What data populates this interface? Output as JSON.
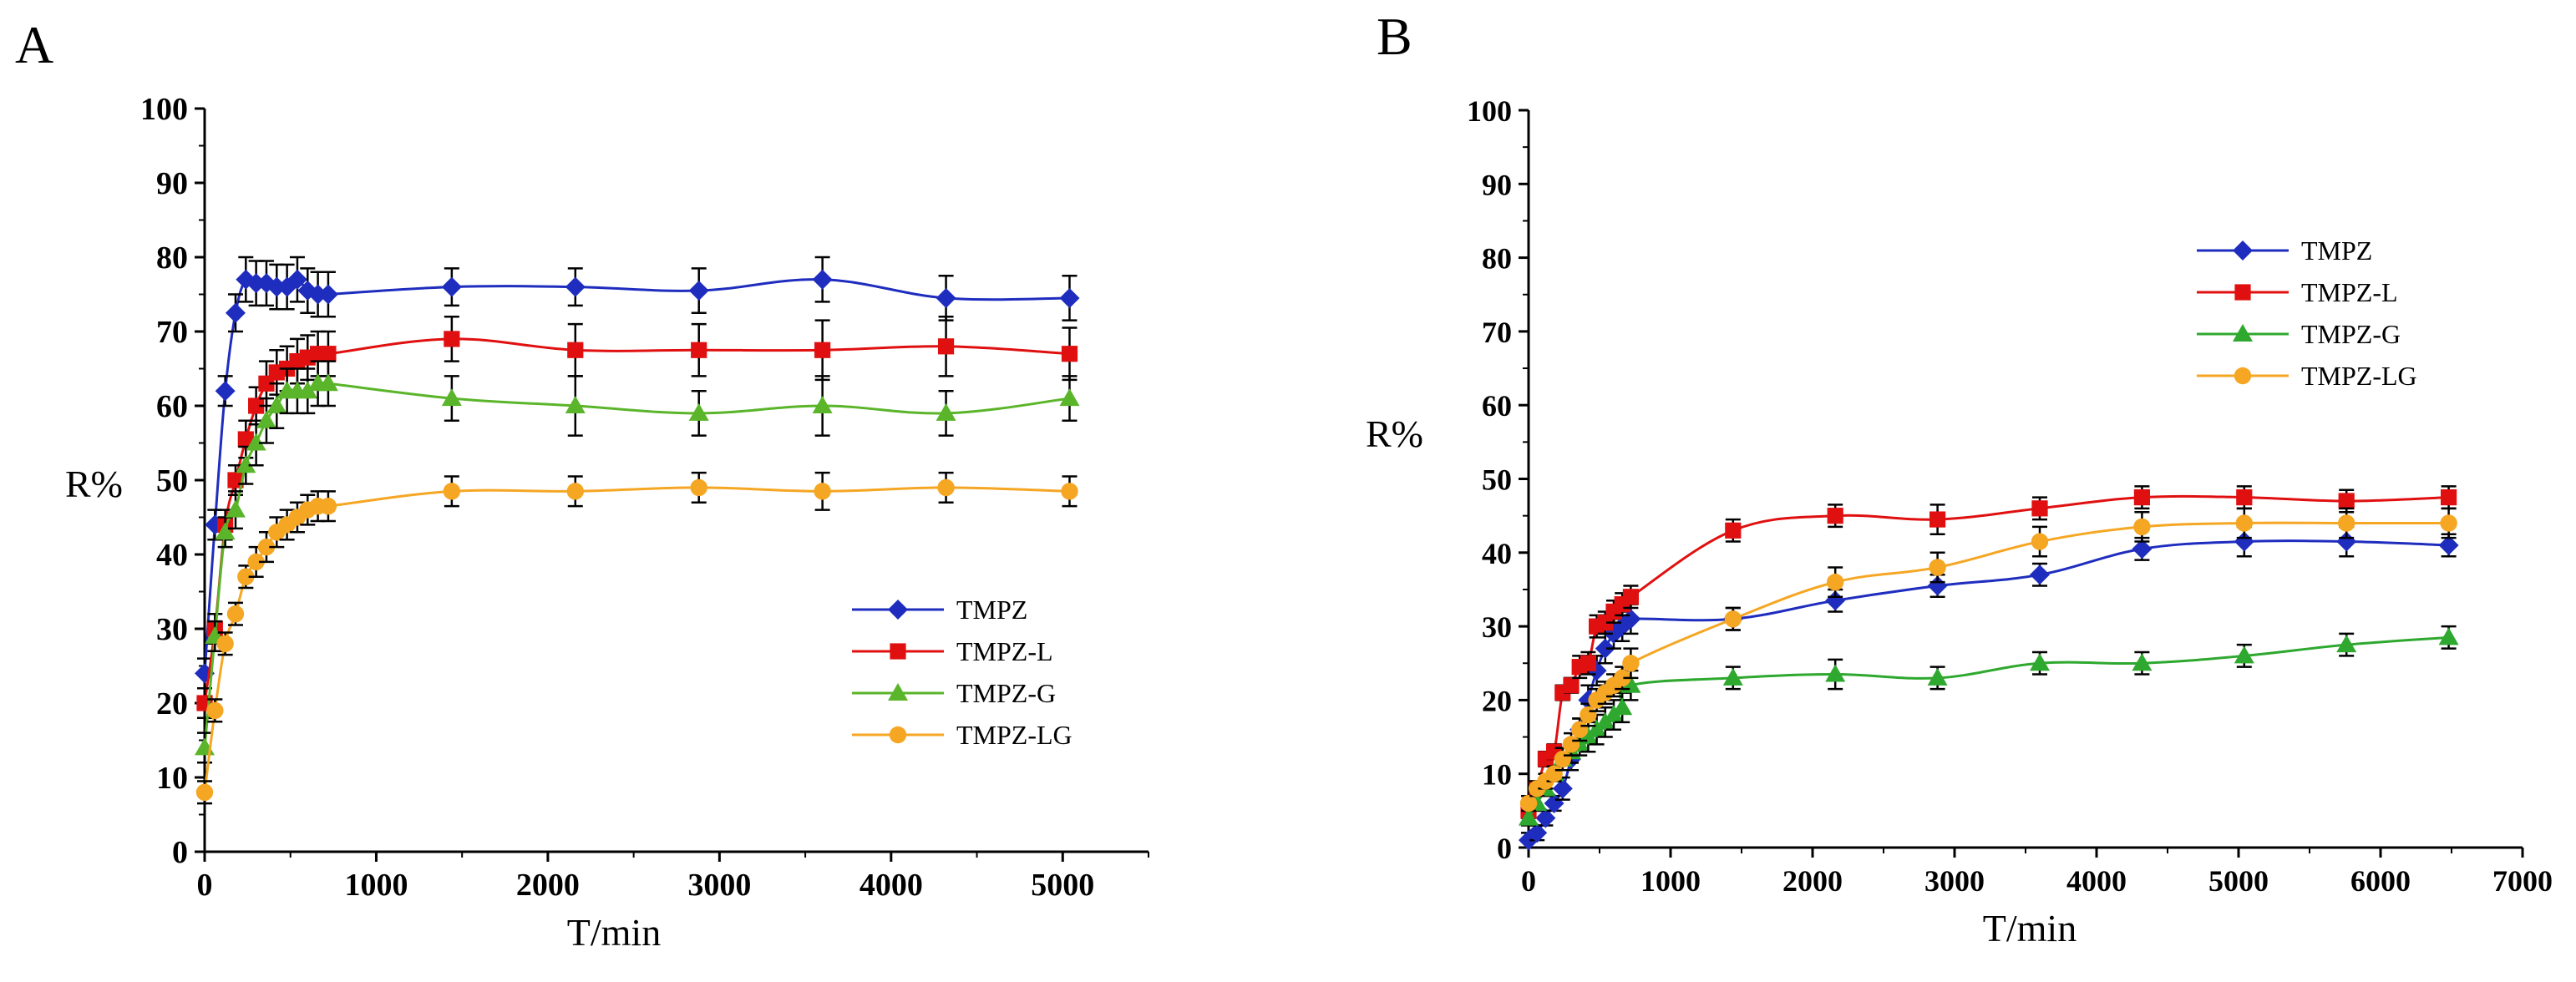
{
  "figure": {
    "panel_labels": [
      "A",
      "B"
    ]
  },
  "chart_data": [
    {
      "type": "line",
      "panel": "A",
      "title": "",
      "xlabel": "T/min",
      "ylabel": "R%",
      "xlim": [
        0,
        5500
      ],
      "ylim": [
        0,
        100
      ],
      "xticks": [
        0,
        1000,
        2000,
        3000,
        4000,
        5000
      ],
      "yticks": [
        0,
        10,
        20,
        30,
        40,
        50,
        60,
        70,
        80,
        90,
        100
      ],
      "legend_position": "lower-right",
      "series": [
        {
          "name": "TMPZ",
          "color": "#1f2dbf",
          "marker": "diamond",
          "x": [
            0,
            60,
            120,
            180,
            240,
            300,
            360,
            420,
            480,
            540,
            600,
            660,
            720,
            1440,
            2160,
            2880,
            3600,
            4320,
            5040
          ],
          "y": [
            24,
            44,
            62,
            72.5,
            77,
            76.5,
            76.5,
            76,
            76,
            77,
            75.5,
            75,
            75,
            76,
            76,
            75.5,
            77,
            74.5,
            74.5
          ],
          "err": [
            2,
            2,
            2,
            2.5,
            3,
            3,
            3,
            3,
            3,
            3,
            3,
            3,
            3,
            2.5,
            2.5,
            3,
            3,
            3,
            3
          ]
        },
        {
          "name": "TMPZ-L",
          "color": "#e01010",
          "marker": "square",
          "x": [
            0,
            60,
            120,
            180,
            240,
            300,
            360,
            420,
            480,
            540,
            600,
            660,
            720,
            1440,
            2160,
            2880,
            3600,
            4320,
            5040
          ],
          "y": [
            20,
            30,
            44,
            50,
            55.5,
            60,
            63,
            64.5,
            65,
            66,
            66.5,
            67,
            67,
            69,
            67.5,
            67.5,
            67.5,
            68,
            67
          ],
          "err": [
            2,
            2,
            2,
            2,
            2.5,
            2.5,
            3,
            3,
            3,
            3,
            3,
            3,
            3,
            3,
            3.5,
            3.5,
            4,
            4,
            3.5
          ]
        },
        {
          "name": "TMPZ-G",
          "color": "#5ab52a",
          "marker": "triangle",
          "x": [
            0,
            60,
            120,
            180,
            240,
            300,
            360,
            420,
            480,
            540,
            600,
            660,
            720,
            1440,
            2160,
            2880,
            3600,
            4320,
            5040
          ],
          "y": [
            14,
            29,
            43,
            46,
            52,
            55,
            58,
            60,
            62,
            62,
            62,
            63,
            63,
            61,
            60,
            59,
            60,
            59,
            61
          ],
          "err": [
            2,
            2,
            2,
            2.5,
            2.5,
            3,
            3,
            3,
            3,
            3,
            3,
            3,
            3,
            3,
            4,
            3,
            4,
            3,
            3
          ]
        },
        {
          "name": "TMPZ-LG",
          "color": "#f5a623",
          "marker": "circle",
          "x": [
            0,
            60,
            120,
            180,
            240,
            300,
            360,
            420,
            480,
            540,
            600,
            660,
            720,
            1440,
            2160,
            2880,
            3600,
            4320,
            5040
          ],
          "y": [
            8,
            19,
            28,
            32,
            37,
            39,
            41,
            43,
            44,
            45,
            46,
            46.5,
            46.5,
            48.5,
            48.5,
            49,
            48.5,
            49,
            48.5
          ],
          "err": [
            1.5,
            1.5,
            1.5,
            1.5,
            1.5,
            2,
            2,
            2,
            2,
            2,
            2,
            2,
            2,
            2,
            2,
            2,
            2.5,
            2,
            2
          ]
        }
      ],
      "legend": [
        "TMPZ",
        "TMPZ-L",
        "TMPZ-G",
        "TMPZ-LG"
      ]
    },
    {
      "type": "line",
      "panel": "B",
      "title": "",
      "xlabel": "T/min",
      "ylabel": "R%",
      "xlim": [
        0,
        7000
      ],
      "ylim": [
        0,
        100
      ],
      "xticks": [
        0,
        1000,
        2000,
        3000,
        4000,
        5000,
        6000,
        7000
      ],
      "yticks": [
        0,
        10,
        20,
        30,
        40,
        50,
        60,
        70,
        80,
        90,
        100
      ],
      "legend_position": "upper-right",
      "series": [
        {
          "name": "TMPZ",
          "color": "#1f2dbf",
          "marker": "diamond",
          "x": [
            0,
            60,
            120,
            180,
            240,
            300,
            360,
            420,
            480,
            540,
            600,
            660,
            720,
            1440,
            2160,
            2880,
            3600,
            4320,
            5040,
            5760,
            6480
          ],
          "y": [
            1,
            2,
            4,
            6,
            8,
            12,
            16,
            20,
            24,
            27,
            29,
            30,
            31,
            31,
            33.5,
            35.5,
            37,
            40.5,
            41.5,
            41.5,
            41
          ],
          "err": [
            1,
            1,
            1,
            1,
            1.5,
            1.5,
            1.5,
            2,
            2,
            2,
            2,
            2,
            2,
            1.5,
            1.5,
            1.5,
            1.5,
            1.5,
            2,
            2,
            1.5
          ]
        },
        {
          "name": "TMPZ-L",
          "color": "#e01010",
          "marker": "square",
          "x": [
            0,
            60,
            120,
            180,
            240,
            300,
            360,
            420,
            480,
            540,
            600,
            660,
            720,
            1440,
            2160,
            2880,
            3600,
            4320,
            5040,
            5760,
            6480
          ],
          "y": [
            5,
            8,
            12,
            13,
            21,
            22,
            24.5,
            25,
            30,
            30.5,
            32,
            33,
            34,
            43,
            45,
            44.5,
            46,
            47.5,
            47.5,
            47,
            47.5
          ],
          "err": [
            1,
            1,
            1,
            1,
            1,
            1,
            1.5,
            1.5,
            1.5,
            1.5,
            1.5,
            1.5,
            1.5,
            1.5,
            1.5,
            2,
            1.5,
            1.5,
            1.5,
            1.5,
            1.5
          ]
        },
        {
          "name": "TMPZ-G",
          "color": "#2ea82e",
          "marker": "triangle",
          "x": [
            0,
            60,
            120,
            180,
            240,
            300,
            360,
            420,
            480,
            540,
            600,
            660,
            720,
            1440,
            2160,
            2880,
            3600,
            4320,
            5040,
            5760,
            6480
          ],
          "y": [
            4,
            6,
            8,
            10,
            12,
            13,
            14,
            15,
            16,
            17,
            18,
            19,
            22,
            23,
            23.5,
            23,
            25,
            25,
            26,
            27.5,
            28.5
          ],
          "err": [
            1,
            1,
            1,
            1,
            1.5,
            1.5,
            1.5,
            2,
            2,
            2,
            2,
            2,
            2,
            1.5,
            2,
            1.5,
            1.5,
            1.5,
            1.5,
            1.5,
            1.5
          ]
        },
        {
          "name": "TMPZ-LG",
          "color": "#f5a623",
          "marker": "circle",
          "x": [
            0,
            60,
            120,
            180,
            240,
            300,
            360,
            420,
            480,
            540,
            600,
            660,
            720,
            1440,
            2160,
            2880,
            3600,
            4320,
            5040,
            5760,
            6480
          ],
          "y": [
            6,
            8,
            9,
            10,
            12,
            14,
            16,
            18,
            20,
            21,
            22,
            23,
            25,
            31,
            36,
            38,
            41.5,
            43.5,
            44,
            44,
            44
          ],
          "err": [
            1,
            1,
            1,
            1,
            1.5,
            1.5,
            1.5,
            1.5,
            1.5,
            1.5,
            1.5,
            1.5,
            2,
            1.5,
            2,
            2,
            2,
            2,
            2,
            2,
            2
          ]
        }
      ],
      "legend": [
        "TMPZ",
        "TMPZ-L",
        "TMPZ-G",
        "TMPZ-LG"
      ]
    }
  ]
}
